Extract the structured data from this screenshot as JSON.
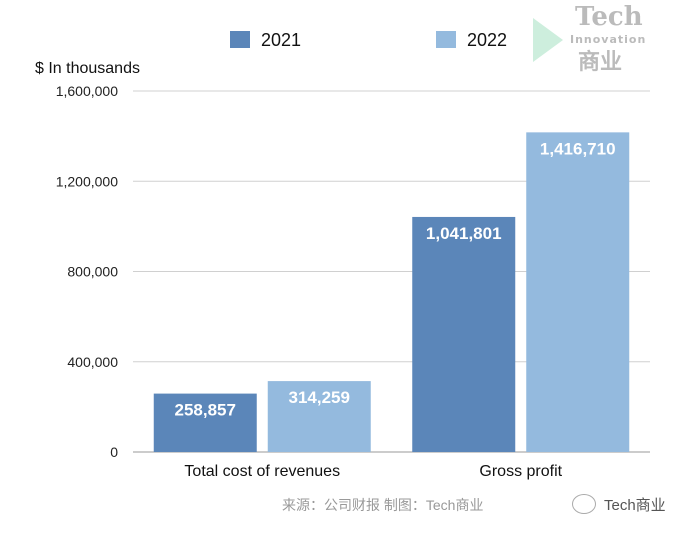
{
  "chart_data": {
    "type": "bar",
    "ylabel": "$ In thousands",
    "categories": [
      "Total cost of revenues",
      "Gross profit"
    ],
    "series": [
      {
        "name": "2021",
        "values": [
          258857,
          1041801
        ],
        "color": "#5b86b9"
      },
      {
        "name": "2022",
        "values": [
          314259,
          1416710
        ],
        "color": "#94bade"
      }
    ],
    "data_labels": [
      [
        "258,857",
        "1,041,801"
      ],
      [
        "314,259",
        "1,416,710"
      ]
    ],
    "ylim": [
      0,
      1600000
    ],
    "yticks": [
      0,
      400000,
      800000,
      1200000,
      1600000
    ],
    "ytick_labels": [
      "0",
      "400,000",
      "800,000",
      "1,200,000",
      "1,600,000"
    ],
    "grid": true,
    "legend_position": "top"
  },
  "watermark": {
    "tech": "Tech",
    "innovation": "Innovation",
    "cn": "商业"
  },
  "footer": {
    "source": "来源：公司财报 制图：Tech商业",
    "account": "Tech商业"
  }
}
